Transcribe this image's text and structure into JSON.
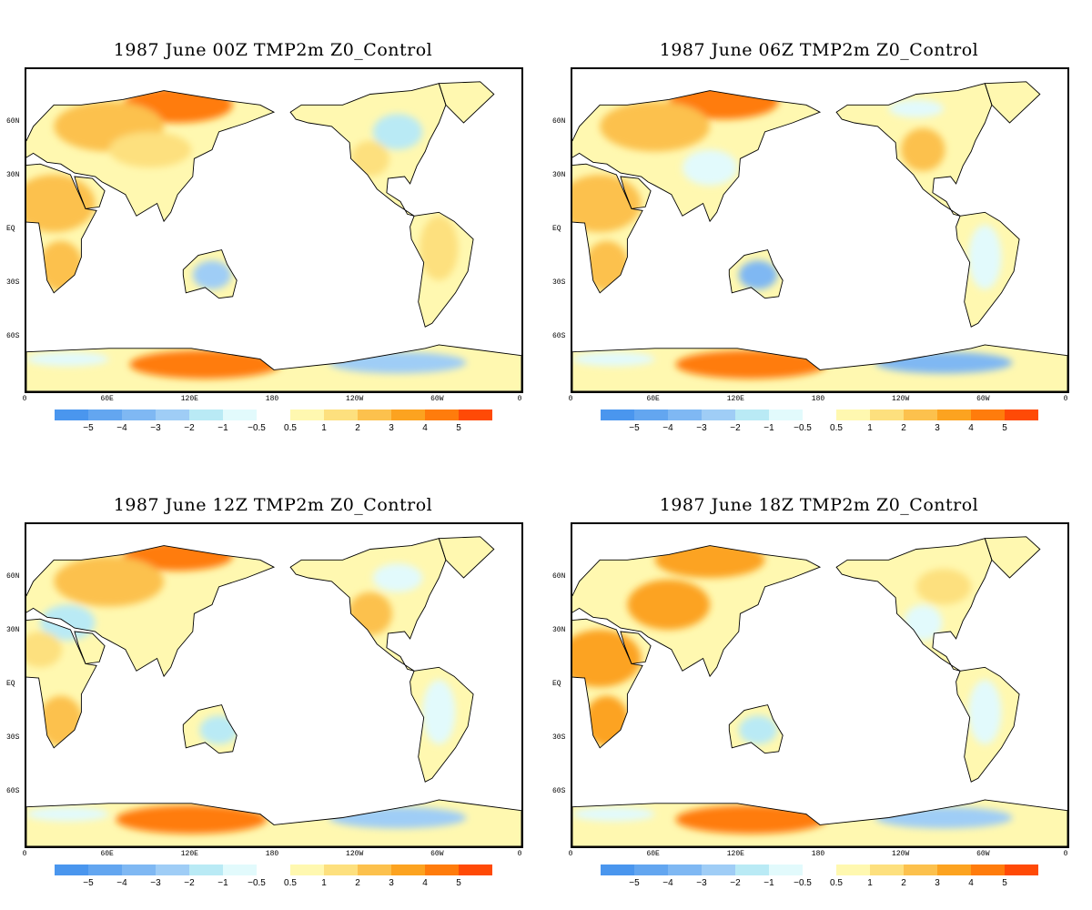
{
  "panels": [
    {
      "title": "1987  June  00Z TMP2m Z0_Control",
      "pattern": 0
    },
    {
      "title": "1987  June 06Z TMP2m Z0_Control",
      "pattern": 1
    },
    {
      "title": "1987  June 12Z TMP2m Z0_Control",
      "pattern": 2
    },
    {
      "title": "1987  June 18Z TMP2m Z0_Control",
      "pattern": 3
    }
  ],
  "lat_labels": [
    "60N",
    "30N",
    "EQ",
    "30S",
    "60S"
  ],
  "lat_values": [
    60,
    30,
    0,
    -30,
    -60
  ],
  "lon_labels": [
    "0",
    "60E",
    "120E",
    "180",
    "120W",
    "60W",
    "0"
  ],
  "lon_values": [
    0,
    60,
    120,
    180,
    240,
    300,
    360
  ],
  "colorbar": {
    "neg_colors": [
      "#4a96ee",
      "#63a6f0",
      "#7fb8f3",
      "#9fcdf6",
      "#b9eaf5",
      "#e2fafc"
    ],
    "pos_colors": [
      "#fff8b0",
      "#fde07e",
      "#fcc14d",
      "#fca320",
      "#ff7c0c",
      "#ff4a06"
    ],
    "neg_ticks": [
      "−5",
      "−4",
      "−3",
      "−2",
      "−1",
      "−0.5"
    ],
    "pos_ticks": [
      "0.5",
      "1",
      "2",
      "3",
      "4",
      "5"
    ]
  }
}
